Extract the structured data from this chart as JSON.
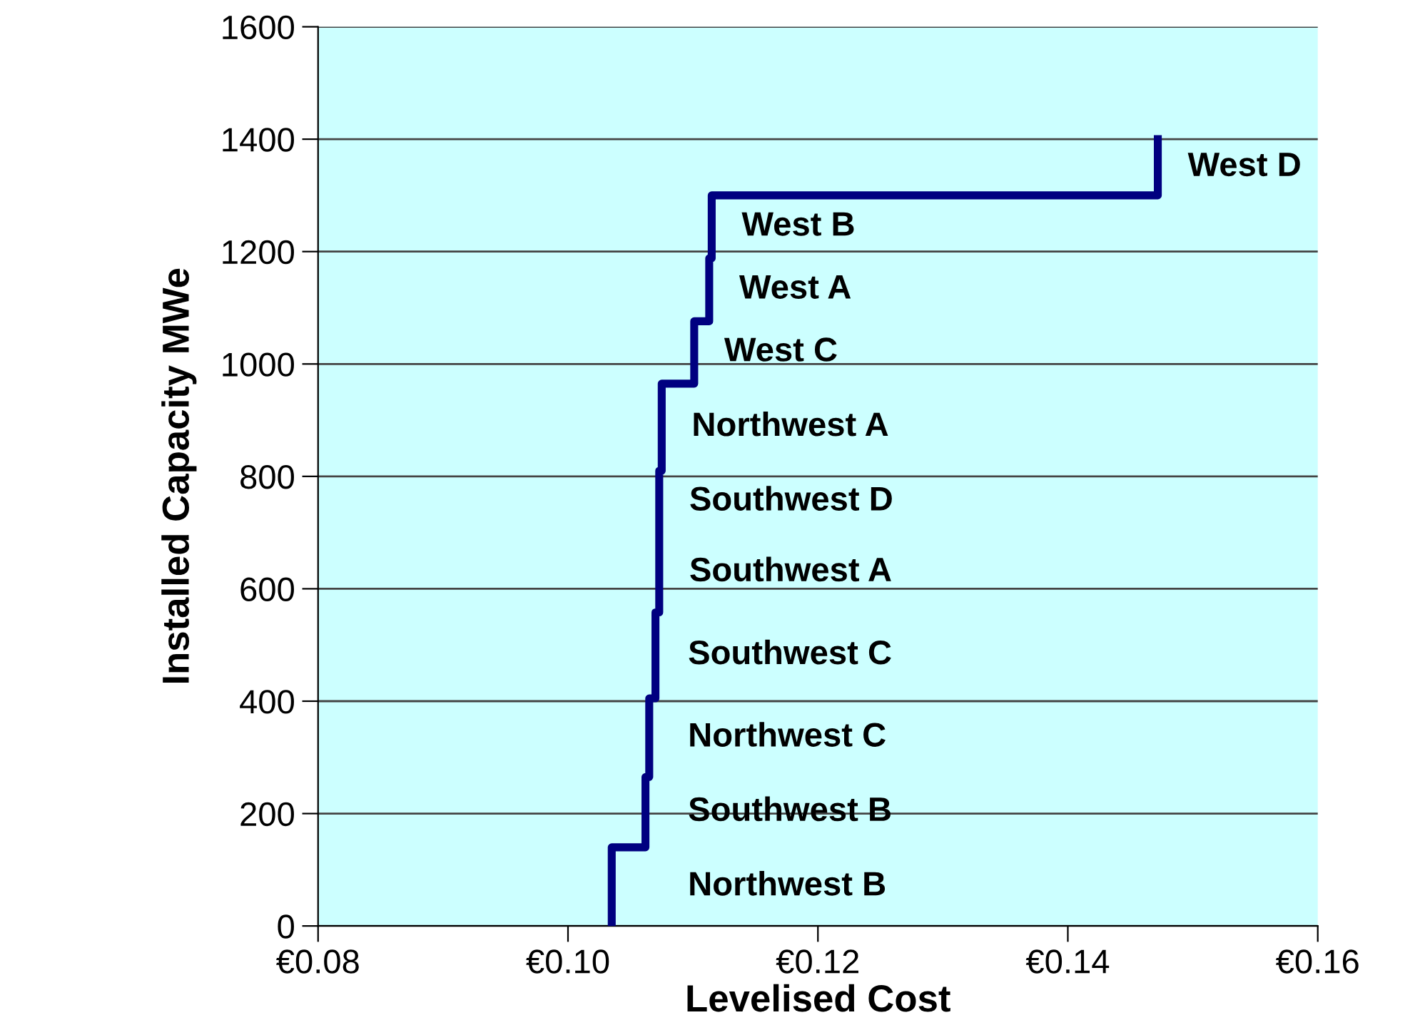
{
  "chart_data": {
    "type": "line",
    "xlabel": "Levelised Cost",
    "ylabel": "Installed Capacity MWe",
    "series": [
      {
        "color": "#000080",
        "x": [
          0.1035,
          0.1035,
          0.1062,
          0.1062,
          0.1065,
          0.1065,
          0.107,
          0.107,
          0.1073,
          0.1073,
          0.1073,
          0.1075,
          0.1075,
          0.1101,
          0.1101,
          0.1113,
          0.1113,
          0.1115,
          0.1115,
          0.1472,
          0.1472
        ],
        "values": [
          0,
          140,
          140,
          265,
          265,
          405,
          405,
          558,
          558,
          700,
          810,
          810,
          965,
          965,
          1076,
          1076,
          1188,
          1188,
          1300,
          1300,
          1400
        ]
      }
    ],
    "xlim": [
      0.08,
      0.16
    ],
    "ylim": [
      0,
      1600
    ],
    "xticks": [
      {
        "value": 0.08,
        "label": "€0.08"
      },
      {
        "value": 0.1,
        "label": "€0.10"
      },
      {
        "value": 0.12,
        "label": "€0.12"
      },
      {
        "value": 0.14,
        "label": "€0.14"
      },
      {
        "value": 0.16,
        "label": "€0.16"
      }
    ],
    "yticks": [
      0,
      200,
      400,
      600,
      800,
      1000,
      1200,
      1400,
      1600
    ],
    "grid": "y",
    "marker": "none",
    "line_style": "solid",
    "annotations": [
      "Northwest B",
      "Southwest B",
      "Northwest C",
      "Southwest C",
      "Southwest A",
      "Southwest D",
      "Northwest A",
      "West C",
      "West A",
      "West B",
      "West D"
    ]
  }
}
